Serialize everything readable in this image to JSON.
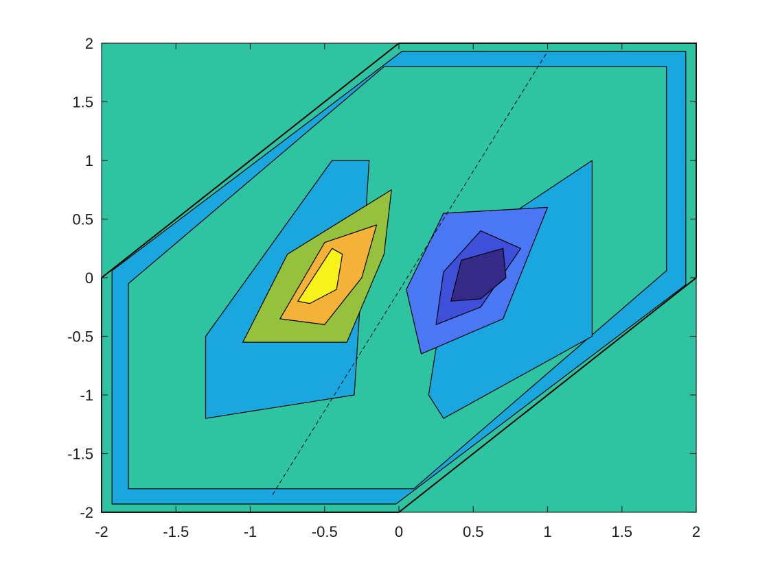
{
  "chart_data": {
    "type": "contourf",
    "title": "",
    "xlabel": "",
    "ylabel": "",
    "xlim": [
      -2,
      2
    ],
    "ylim": [
      -2,
      2
    ],
    "xticks": [
      -2,
      -1.5,
      -1,
      -0.5,
      0,
      0.5,
      1,
      1.5,
      2
    ],
    "yticks": [
      -2,
      -1.5,
      -1,
      -0.5,
      0,
      0.5,
      1,
      1.5,
      2
    ],
    "xtick_labels": [
      "-2",
      "-1.5",
      "-1",
      "-0.5",
      "0",
      "0.5",
      "1",
      "1.5",
      "2"
    ],
    "ytick_labels": [
      "-2",
      "-1.5",
      "-1",
      "-0.5",
      "0",
      "0.5",
      "1",
      "1.5",
      "2"
    ],
    "grid": false,
    "legend": "none",
    "colormap": "parula",
    "level_colors": [
      "#352a87",
      "#3e4fd9",
      "#4a78f5",
      "#1aa6de",
      "#2fc4a1",
      "#95c13d",
      "#f4b338",
      "#f7f21a"
    ],
    "background_level_color": "#2fc4a1",
    "contour_line_color": "#000000",
    "support_region": {
      "shape": "hexagon",
      "vertices": [
        [
          -2,
          0
        ],
        [
          0,
          2
        ],
        [
          2,
          2
        ],
        [
          2,
          0
        ],
        [
          0,
          -2
        ],
        [
          -2,
          -2
        ]
      ]
    },
    "positive_lobe": {
      "center": [
        -0.55,
        0.0
      ],
      "peak_level_color": "#f7f21a"
    },
    "negative_lobe": {
      "center": [
        0.5,
        0.0
      ],
      "peak_level_color": "#352a87"
    },
    "nested_levels": [
      {
        "name": "outer",
        "color": "#1aa6de",
        "polygon": [
          [
            -1.93,
            0.06
          ],
          [
            0.02,
            1.93
          ],
          [
            1.93,
            1.93
          ],
          [
            1.93,
            -0.06
          ],
          [
            -0.02,
            -1.93
          ],
          [
            -1.93,
            -1.93
          ]
        ]
      },
      {
        "name": "inner-band",
        "color": "#2fc4a1",
        "polygon": [
          [
            -1.82,
            -0.05
          ],
          [
            -0.1,
            1.8
          ],
          [
            1.8,
            1.8
          ],
          [
            1.8,
            0.06
          ],
          [
            0.1,
            -1.8
          ],
          [
            -1.82,
            -1.8
          ]
        ]
      },
      {
        "name": "left-lobe",
        "color": "#1aa6de",
        "polygon": [
          [
            -1.3,
            -0.5
          ],
          [
            -0.45,
            1.0
          ],
          [
            -0.2,
            1.0
          ],
          [
            -0.3,
            -1.0
          ],
          [
            -1.3,
            -1.2
          ]
        ]
      },
      {
        "name": "right-lobe",
        "color": "#1aa6de",
        "polygon": [
          [
            0.2,
            -1.0
          ],
          [
            0.35,
            0.2
          ],
          [
            1.3,
            1.0
          ],
          [
            1.3,
            -0.5
          ],
          [
            0.3,
            -1.2
          ]
        ]
      },
      {
        "name": "pos-1",
        "color": "#95c13d",
        "polygon": [
          [
            -1.05,
            -0.55
          ],
          [
            -0.75,
            0.2
          ],
          [
            -0.05,
            0.75
          ],
          [
            -0.1,
            0.2
          ],
          [
            -0.35,
            -0.55
          ]
        ]
      },
      {
        "name": "pos-2",
        "color": "#f4b338",
        "polygon": [
          [
            -0.8,
            -0.35
          ],
          [
            -0.5,
            0.3
          ],
          [
            -0.15,
            0.45
          ],
          [
            -0.25,
            0.0
          ],
          [
            -0.5,
            -0.4
          ]
        ]
      },
      {
        "name": "pos-3",
        "color": "#f7f21a",
        "polygon": [
          [
            -0.68,
            -0.2
          ],
          [
            -0.45,
            0.25
          ],
          [
            -0.38,
            0.2
          ],
          [
            -0.42,
            -0.1
          ],
          [
            -0.6,
            -0.22
          ]
        ]
      },
      {
        "name": "neg-1",
        "color": "#4a78f5",
        "polygon": [
          [
            0.15,
            -0.65
          ],
          [
            0.05,
            -0.1
          ],
          [
            0.3,
            0.55
          ],
          [
            1.0,
            0.6
          ],
          [
            0.7,
            -0.35
          ]
        ]
      },
      {
        "name": "neg-2",
        "color": "#3e4fd9",
        "polygon": [
          [
            0.25,
            -0.4
          ],
          [
            0.3,
            0.05
          ],
          [
            0.55,
            0.4
          ],
          [
            0.82,
            0.25
          ],
          [
            0.55,
            -0.25
          ]
        ]
      },
      {
        "name": "neg-3",
        "color": "#352a87",
        "polygon": [
          [
            0.35,
            -0.2
          ],
          [
            0.42,
            0.15
          ],
          [
            0.7,
            0.25
          ],
          [
            0.72,
            0.0
          ],
          [
            0.55,
            -0.18
          ]
        ]
      }
    ]
  }
}
